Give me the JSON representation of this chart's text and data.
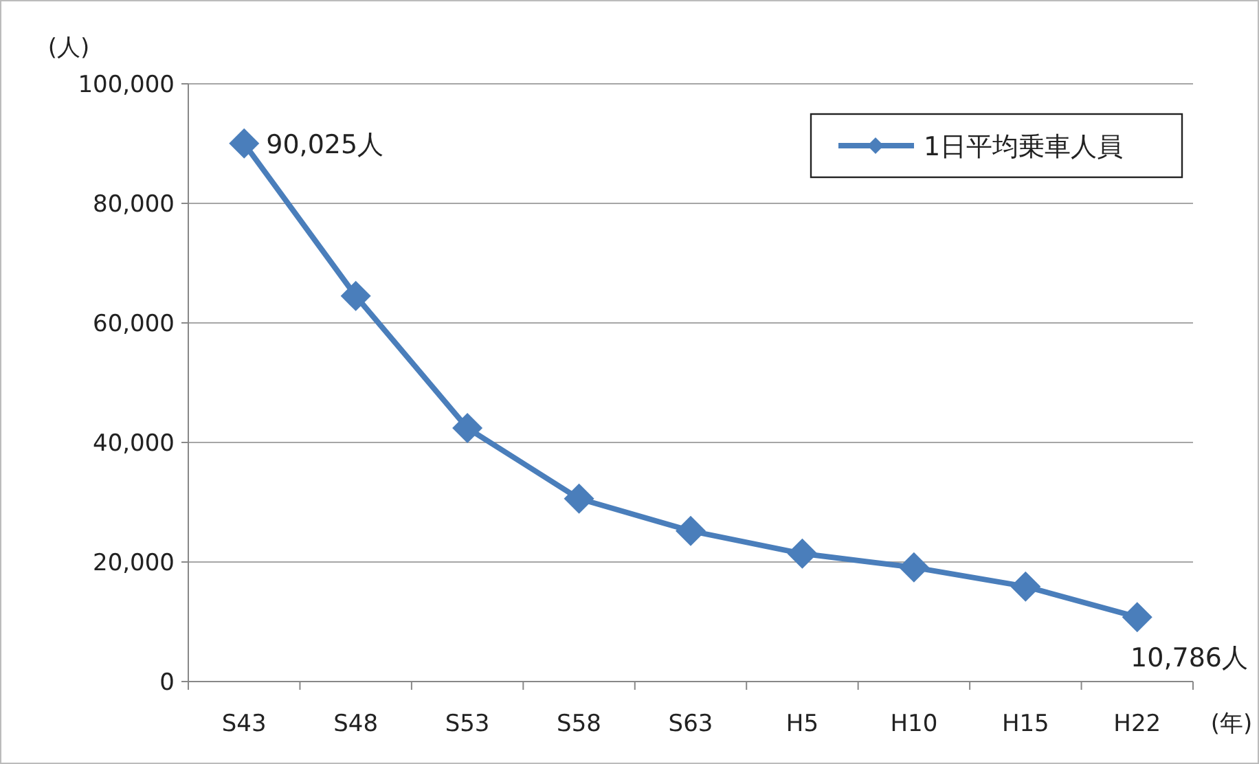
{
  "chart_data": {
    "type": "line",
    "ylabel": "(人)",
    "xlabel": "(年)",
    "categories": [
      "S43",
      "S48",
      "S53",
      "S58",
      "S63",
      "H5",
      "H10",
      "H15",
      "H22"
    ],
    "series": [
      {
        "name": "1日平均乗車人員",
        "color": "#4a7ebb",
        "values": [
          90025,
          64500,
          42400,
          30600,
          25200,
          21400,
          19100,
          15900,
          10786
        ]
      }
    ],
    "ylim": [
      0,
      100000
    ],
    "yticks": [
      {
        "value": 0,
        "label": "0"
      },
      {
        "value": 20000,
        "label": "20,000"
      },
      {
        "value": 40000,
        "label": "40,000"
      },
      {
        "value": 60000,
        "label": "60,000"
      },
      {
        "value": 80000,
        "label": "80,000"
      },
      {
        "value": 100000,
        "label": "100,000"
      }
    ],
    "grid": "y",
    "legend": "top right",
    "marker": "diamond",
    "line_style": "solid",
    "annotations": [
      {
        "text": "90,025人",
        "x": "S43",
        "y": 90025
      },
      {
        "text": "10,786人",
        "x": "H22",
        "y": 10786
      }
    ]
  }
}
